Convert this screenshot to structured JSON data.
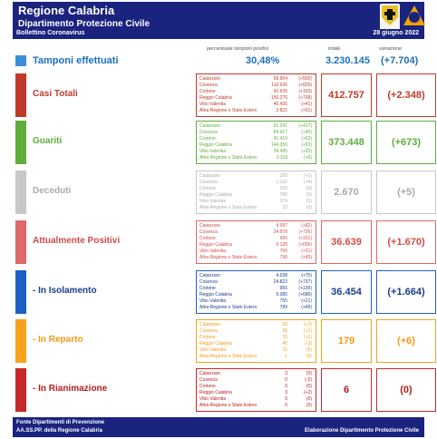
{
  "header": {
    "title": "Regione Calabria",
    "subtitle": "Dipartimento Protezione Civile"
  },
  "subbar": {
    "left": "Bollettino Coronavirus",
    "right": "28 giugno 2022"
  },
  "col_headers": {
    "pct": "percentuale tamponi positivi",
    "tot": "totale",
    "var": "variazione"
  },
  "tamponi": {
    "label": "Tamponi effettuati",
    "pct": "30,48%",
    "total": "3.230.145",
    "variation": "(+7.704)",
    "color": "#1d6fbf"
  },
  "sections": [
    {
      "key": "casi",
      "label": "Casi Totali",
      "color": "#c0392b",
      "bar": "#c0392b",
      "total": "412.757",
      "variation": "(+2.348)",
      "rows": [
        [
          "Catanzaro",
          "65.664",
          "(+500)"
        ],
        [
          "Cosenza",
          "110.926",
          "(+825)"
        ],
        [
          "Crotone",
          "42.635",
          "(+163)"
        ],
        [
          "Reggio Calabria",
          "150.276",
          "(+708)"
        ],
        [
          "Vibo Valentia",
          "40.435",
          "(+41)"
        ],
        [
          "Altra Regione o Stato Estero",
          "2.821",
          "(+51)"
        ]
      ]
    },
    {
      "key": "guariti",
      "label": "Guariti",
      "color": "#5fad3c",
      "bar": "#5fad3c",
      "total": "373.448",
      "variation": "(+673)",
      "rows": [
        [
          "Catanzaro",
          "61.241",
          "(+417)"
        ],
        [
          "Cosenza",
          "84.917",
          "(+95)"
        ],
        [
          "Crotone",
          "41.419",
          "(+62)"
        ],
        [
          "Reggio Calabria",
          "144.356",
          "(+53)"
        ],
        [
          "Vibo Valentia",
          "39.495",
          "(+20)"
        ],
        [
          "Altra Regione o Stato Estero",
          "2.118",
          "(+6)"
        ]
      ]
    },
    {
      "key": "deceduti",
      "label": "Deceduti",
      "color": "#aaaaaa",
      "bar": "#c8c8c8",
      "total": "2.670",
      "variation": "(+5)",
      "rows": [
        [
          "Catanzaro",
          "326",
          "(+1)"
        ],
        [
          "Cosenza",
          "1.131",
          "(+4)"
        ],
        [
          "Crotone",
          "226",
          "(0)"
        ],
        [
          "Reggio Calabria",
          "790",
          "(0)"
        ],
        [
          "Vibo Valentia",
          "174",
          "(0)"
        ],
        [
          "Altra Regione o Stato Estero",
          "13",
          "(0)"
        ]
      ]
    },
    {
      "key": "attuali",
      "label": "Attualmente Positivi",
      "color": "#d14a4a",
      "bar": "#e06868",
      "total": "36.639",
      "variation": "(+1.670)",
      "rows": [
        [
          "Catanzaro",
          "4.097",
          "(+82)"
        ],
        [
          "Cosenza",
          "24.878",
          "(+726)"
        ],
        [
          "Crotone",
          "990",
          "(+101)"
        ],
        [
          "Reggio Calabria",
          "5.128",
          "(+655)"
        ],
        [
          "Vibo Valentia",
          "766",
          "(+21)"
        ],
        [
          "Altra Regione o Stato Estero",
          "790",
          "(+45)"
        ]
      ]
    },
    {
      "key": "isolamento",
      "label": "- In Isolamento",
      "color": "#1a3e8c",
      "bar": "#1f5fc4",
      "total": "36.454",
      "variation": "(+1.664)",
      "rows": [
        [
          "Catanzaro",
          "4.038",
          "(+75)"
        ],
        [
          "Cosenza",
          "24.822",
          "(+737)"
        ],
        [
          "Crotone",
          "965",
          "(+100)"
        ],
        [
          "Reggio Calabria",
          "5.085",
          "(+686)"
        ],
        [
          "Vibo Valentia",
          "755",
          "(+21)"
        ],
        [
          "Altra Regione o Stato Estero",
          "789",
          "(+45)"
        ]
      ]
    },
    {
      "key": "reparto",
      "label": "- In Reparto",
      "color": "#f29a1a",
      "bar": "#f7a21c",
      "total": "179",
      "variation": "(+6)",
      "rows": [
        [
          "Catanzaro",
          "56",
          "(+7)"
        ],
        [
          "Cosenza",
          "56",
          "(+1)"
        ],
        [
          "Crotone",
          "15",
          "(+1)"
        ],
        [
          "Reggio Calabria",
          "40",
          "(-3)"
        ],
        [
          "Vibo Valentia",
          "11",
          "(0)"
        ],
        [
          "Altra Regione o Stato Estero",
          "1",
          "(0)"
        ]
      ]
    },
    {
      "key": "rianimazione",
      "label": "- In Rianimazione",
      "color": "#b71c1c",
      "bar": "#c62828",
      "total": "6",
      "variation": "(0)",
      "rows": [
        [
          "Catanzaro",
          "3",
          "(0)"
        ],
        [
          "Cosenza",
          "0",
          "(-2)"
        ],
        [
          "Crotone",
          "0",
          "(0)"
        ],
        [
          "Reggio Calabria",
          "3",
          "(+2)"
        ],
        [
          "Vibo Valentia",
          "0",
          "(0)"
        ],
        [
          "Altra Regione o Stato Estero",
          "0",
          "(0)"
        ]
      ]
    }
  ],
  "footer": {
    "line1": "Fonte Dipartimenti di Prevenzione",
    "line2": "AA.SS.PP. della Regione Calabria",
    "right": "Elaborazione Dipartimento Protezione Civile"
  }
}
